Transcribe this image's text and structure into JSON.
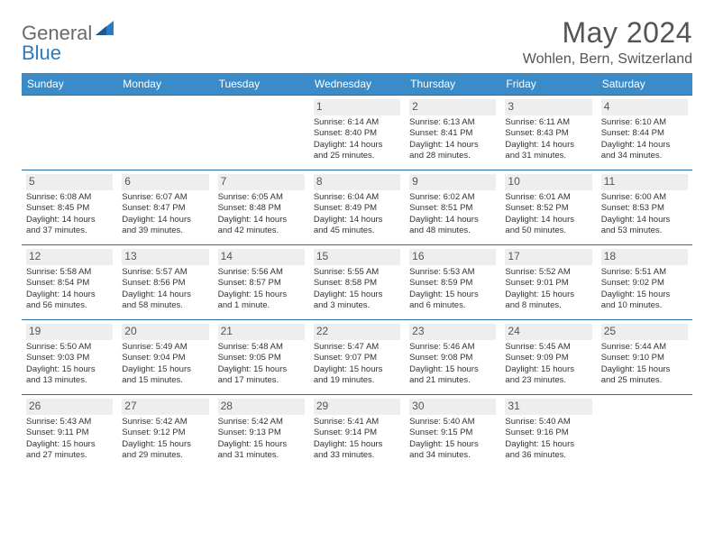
{
  "brand": {
    "part1": "General",
    "part2": "Blue"
  },
  "title": "May 2024",
  "location": "Wohlen, Bern, Switzerland",
  "colors": {
    "header_bg": "#3b8bc9",
    "header_border": "#2b6fa8",
    "daynum_bg": "#eeeeee",
    "text": "#333333",
    "title_text": "#555555",
    "logo_gray": "#6a6a6a",
    "logo_blue": "#2b7bbf",
    "page_bg": "#ffffff"
  },
  "typography": {
    "title_fontsize": 32,
    "location_fontsize": 16,
    "dayheader_fontsize": 12,
    "daynum_fontsize": 12,
    "body_fontsize": 9.5
  },
  "day_names": [
    "Sunday",
    "Monday",
    "Tuesday",
    "Wednesday",
    "Thursday",
    "Friday",
    "Saturday"
  ],
  "weeks": [
    [
      null,
      null,
      null,
      {
        "n": "1",
        "sr": "Sunrise: 6:14 AM",
        "ss": "Sunset: 8:40 PM",
        "d1": "Daylight: 14 hours",
        "d2": "and 25 minutes."
      },
      {
        "n": "2",
        "sr": "Sunrise: 6:13 AM",
        "ss": "Sunset: 8:41 PM",
        "d1": "Daylight: 14 hours",
        "d2": "and 28 minutes."
      },
      {
        "n": "3",
        "sr": "Sunrise: 6:11 AM",
        "ss": "Sunset: 8:43 PM",
        "d1": "Daylight: 14 hours",
        "d2": "and 31 minutes."
      },
      {
        "n": "4",
        "sr": "Sunrise: 6:10 AM",
        "ss": "Sunset: 8:44 PM",
        "d1": "Daylight: 14 hours",
        "d2": "and 34 minutes."
      }
    ],
    [
      {
        "n": "5",
        "sr": "Sunrise: 6:08 AM",
        "ss": "Sunset: 8:45 PM",
        "d1": "Daylight: 14 hours",
        "d2": "and 37 minutes."
      },
      {
        "n": "6",
        "sr": "Sunrise: 6:07 AM",
        "ss": "Sunset: 8:47 PM",
        "d1": "Daylight: 14 hours",
        "d2": "and 39 minutes."
      },
      {
        "n": "7",
        "sr": "Sunrise: 6:05 AM",
        "ss": "Sunset: 8:48 PM",
        "d1": "Daylight: 14 hours",
        "d2": "and 42 minutes."
      },
      {
        "n": "8",
        "sr": "Sunrise: 6:04 AM",
        "ss": "Sunset: 8:49 PM",
        "d1": "Daylight: 14 hours",
        "d2": "and 45 minutes."
      },
      {
        "n": "9",
        "sr": "Sunrise: 6:02 AM",
        "ss": "Sunset: 8:51 PM",
        "d1": "Daylight: 14 hours",
        "d2": "and 48 minutes."
      },
      {
        "n": "10",
        "sr": "Sunrise: 6:01 AM",
        "ss": "Sunset: 8:52 PM",
        "d1": "Daylight: 14 hours",
        "d2": "and 50 minutes."
      },
      {
        "n": "11",
        "sr": "Sunrise: 6:00 AM",
        "ss": "Sunset: 8:53 PM",
        "d1": "Daylight: 14 hours",
        "d2": "and 53 minutes."
      }
    ],
    [
      {
        "n": "12",
        "sr": "Sunrise: 5:58 AM",
        "ss": "Sunset: 8:54 PM",
        "d1": "Daylight: 14 hours",
        "d2": "and 56 minutes."
      },
      {
        "n": "13",
        "sr": "Sunrise: 5:57 AM",
        "ss": "Sunset: 8:56 PM",
        "d1": "Daylight: 14 hours",
        "d2": "and 58 minutes."
      },
      {
        "n": "14",
        "sr": "Sunrise: 5:56 AM",
        "ss": "Sunset: 8:57 PM",
        "d1": "Daylight: 15 hours",
        "d2": "and 1 minute."
      },
      {
        "n": "15",
        "sr": "Sunrise: 5:55 AM",
        "ss": "Sunset: 8:58 PM",
        "d1": "Daylight: 15 hours",
        "d2": "and 3 minutes."
      },
      {
        "n": "16",
        "sr": "Sunrise: 5:53 AM",
        "ss": "Sunset: 8:59 PM",
        "d1": "Daylight: 15 hours",
        "d2": "and 6 minutes."
      },
      {
        "n": "17",
        "sr": "Sunrise: 5:52 AM",
        "ss": "Sunset: 9:01 PM",
        "d1": "Daylight: 15 hours",
        "d2": "and 8 minutes."
      },
      {
        "n": "18",
        "sr": "Sunrise: 5:51 AM",
        "ss": "Sunset: 9:02 PM",
        "d1": "Daylight: 15 hours",
        "d2": "and 10 minutes."
      }
    ],
    [
      {
        "n": "19",
        "sr": "Sunrise: 5:50 AM",
        "ss": "Sunset: 9:03 PM",
        "d1": "Daylight: 15 hours",
        "d2": "and 13 minutes."
      },
      {
        "n": "20",
        "sr": "Sunrise: 5:49 AM",
        "ss": "Sunset: 9:04 PM",
        "d1": "Daylight: 15 hours",
        "d2": "and 15 minutes."
      },
      {
        "n": "21",
        "sr": "Sunrise: 5:48 AM",
        "ss": "Sunset: 9:05 PM",
        "d1": "Daylight: 15 hours",
        "d2": "and 17 minutes."
      },
      {
        "n": "22",
        "sr": "Sunrise: 5:47 AM",
        "ss": "Sunset: 9:07 PM",
        "d1": "Daylight: 15 hours",
        "d2": "and 19 minutes."
      },
      {
        "n": "23",
        "sr": "Sunrise: 5:46 AM",
        "ss": "Sunset: 9:08 PM",
        "d1": "Daylight: 15 hours",
        "d2": "and 21 minutes."
      },
      {
        "n": "24",
        "sr": "Sunrise: 5:45 AM",
        "ss": "Sunset: 9:09 PM",
        "d1": "Daylight: 15 hours",
        "d2": "and 23 minutes."
      },
      {
        "n": "25",
        "sr": "Sunrise: 5:44 AM",
        "ss": "Sunset: 9:10 PM",
        "d1": "Daylight: 15 hours",
        "d2": "and 25 minutes."
      }
    ],
    [
      {
        "n": "26",
        "sr": "Sunrise: 5:43 AM",
        "ss": "Sunset: 9:11 PM",
        "d1": "Daylight: 15 hours",
        "d2": "and 27 minutes."
      },
      {
        "n": "27",
        "sr": "Sunrise: 5:42 AM",
        "ss": "Sunset: 9:12 PM",
        "d1": "Daylight: 15 hours",
        "d2": "and 29 minutes."
      },
      {
        "n": "28",
        "sr": "Sunrise: 5:42 AM",
        "ss": "Sunset: 9:13 PM",
        "d1": "Daylight: 15 hours",
        "d2": "and 31 minutes."
      },
      {
        "n": "29",
        "sr": "Sunrise: 5:41 AM",
        "ss": "Sunset: 9:14 PM",
        "d1": "Daylight: 15 hours",
        "d2": "and 33 minutes."
      },
      {
        "n": "30",
        "sr": "Sunrise: 5:40 AM",
        "ss": "Sunset: 9:15 PM",
        "d1": "Daylight: 15 hours",
        "d2": "and 34 minutes."
      },
      {
        "n": "31",
        "sr": "Sunrise: 5:40 AM",
        "ss": "Sunset: 9:16 PM",
        "d1": "Daylight: 15 hours",
        "d2": "and 36 minutes."
      },
      null
    ]
  ]
}
